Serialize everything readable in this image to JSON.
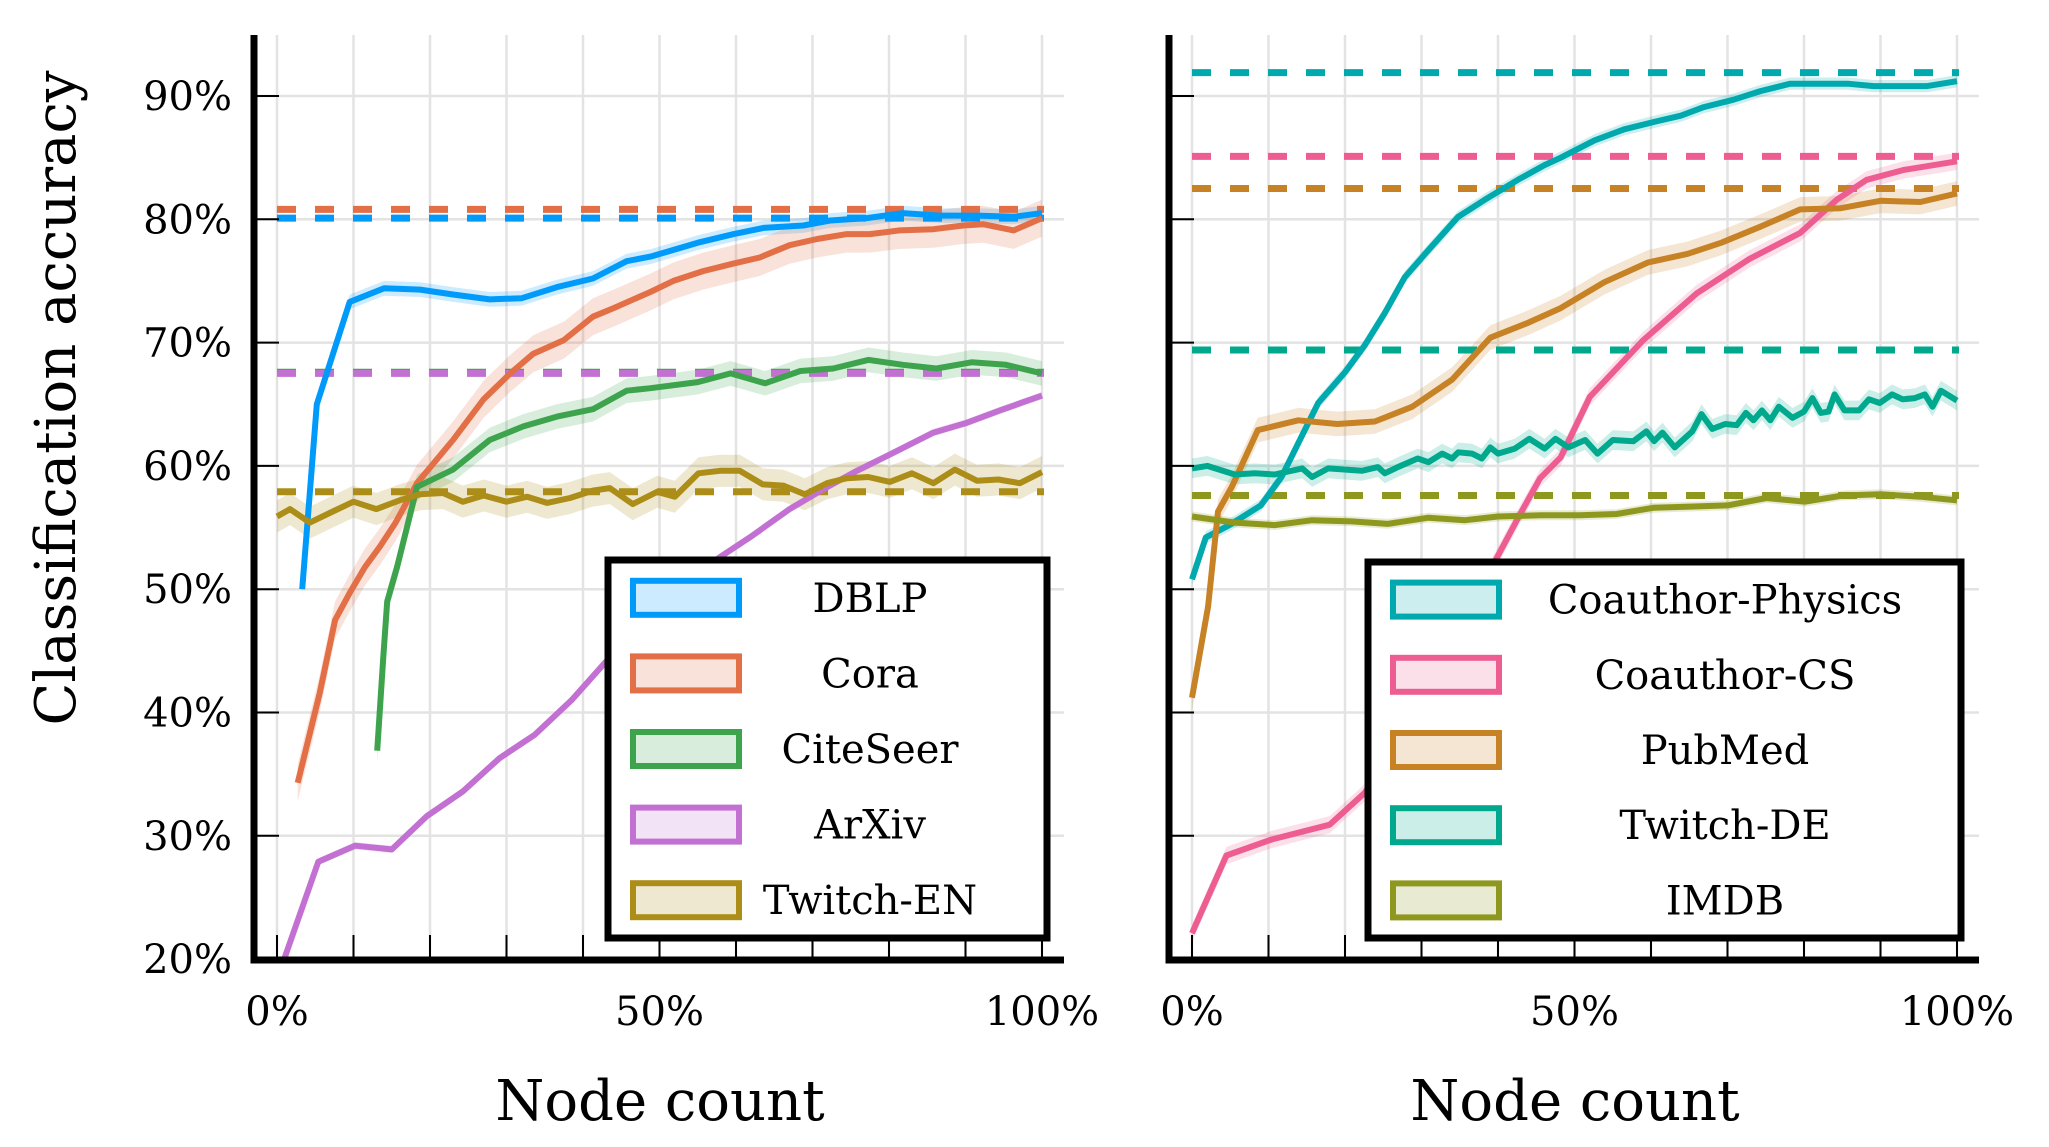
{
  "chart_data": [
    {
      "type": "line",
      "panel": "left",
      "xlabel": "Node count",
      "ylabel": "Classification accuracy",
      "xlim": [
        0,
        100
      ],
      "ylim": [
        20,
        95
      ],
      "xticks": [
        0,
        50,
        100
      ],
      "xtick_labels": [
        "0%",
        "50%",
        "100%"
      ],
      "yticks": [
        20,
        30,
        40,
        50,
        60,
        70,
        80,
        90
      ],
      "ytick_labels": [
        "20%",
        "30%",
        "40%",
        "50%",
        "60%",
        "70%",
        "80%",
        "90%"
      ],
      "grid": true,
      "legend_position": "bottom-right",
      "series": [
        {
          "name": "DBLP",
          "color": "#009AFA",
          "baseline": 80.1,
          "x": [
            3.3,
            5.2,
            9.5,
            14,
            18.7,
            23,
            27.8,
            32,
            36.6,
            41.3,
            45.7,
            49,
            55,
            59.7,
            63.6,
            68.8,
            72.3,
            77.1,
            81.8,
            86.6,
            91.5,
            96.3,
            100
          ],
          "y": [
            50,
            65,
            73.3,
            74.4,
            74.3,
            73.9,
            73.5,
            73.6,
            74.5,
            75.2,
            76.6,
            77.0,
            78.1,
            78.8,
            79.3,
            79.5,
            79.9,
            80.1,
            80.5,
            80.3,
            80.3,
            80.2,
            80.5
          ],
          "band": 0.6
        },
        {
          "name": "Cora",
          "color": "#E26F46",
          "baseline": 80.8,
          "x": [
            2.7,
            5.6,
            7.6,
            9.5,
            11.5,
            13.5,
            15.5,
            18.3,
            23,
            27,
            30.5,
            33.5,
            37.5,
            41.3,
            44,
            48.8,
            51.8,
            55.7,
            59.6,
            63.1,
            67,
            70.6,
            74.5,
            77.5,
            81.4,
            85.8,
            89.7,
            92.3,
            96.3,
            100
          ],
          "y": [
            34.3,
            41.6,
            47.5,
            49.7,
            51.8,
            53.5,
            55.4,
            58.6,
            62.1,
            65.4,
            67.5,
            69.1,
            70.2,
            72.1,
            72.8,
            74.1,
            75.0,
            75.8,
            76.4,
            76.9,
            77.9,
            78.4,
            78.8,
            78.8,
            79.1,
            79.2,
            79.5,
            79.6,
            79.1,
            80.1
          ],
          "band": 1.5
        },
        {
          "name": "CiteSeer",
          "color": "#3DA44D",
          "baseline": 67.6,
          "x": [
            13.1,
            13.9,
            14.4,
            15.7,
            18.3,
            23,
            27.8,
            32.2,
            36.6,
            41.3,
            45.7,
            48.8,
            55,
            59.3,
            63.8,
            68.4,
            72.7,
            77.3,
            81.8,
            86.2,
            90.8,
            95.3,
            100
          ],
          "y": [
            36.9,
            44.5,
            49.0,
            51.8,
            58.3,
            59.7,
            62.1,
            63.2,
            64.0,
            64.6,
            66.1,
            66.3,
            66.8,
            67.5,
            66.7,
            67.7,
            67.9,
            68.6,
            68.2,
            67.9,
            68.4,
            68.2,
            67.5
          ],
          "band": 1.0
        },
        {
          "name": "ArXiv",
          "color": "#C271D2",
          "baseline": 67.5,
          "x": [
            1,
            5.4,
            10.2,
            15,
            19.6,
            24.3,
            29.1,
            33.7,
            38.5,
            43.1,
            48,
            52.5,
            57.9,
            61.8,
            67,
            71.4,
            75.8,
            81,
            85.8,
            90.2,
            94.5,
            100
          ],
          "y": [
            20.1,
            27.9,
            29.2,
            28.9,
            31.6,
            33.6,
            36.3,
            38.2,
            41.0,
            44.2,
            47.3,
            50.0,
            52.6,
            54.2,
            56.5,
            58.1,
            59.6,
            61.2,
            62.7,
            63.5,
            64.5,
            65.7
          ],
          "band": 0.3
        },
        {
          "name": "Twitch-EN",
          "color": "#AC8D18",
          "baseline": 57.9,
          "x": [
            0,
            1.7,
            4.3,
            7.3,
            10,
            13,
            16,
            18.7,
            21.7,
            24.3,
            27,
            30,
            32.7,
            35.3,
            38.3,
            41.3,
            43.5,
            46.5,
            49.7,
            52,
            55.1,
            57.9,
            60.5,
            63.5,
            66.2,
            69,
            71.9,
            74.5,
            77.3,
            80.1,
            83,
            85.8,
            88.6,
            91.5,
            94.3,
            97.1,
            100
          ],
          "y": [
            55.9,
            56.5,
            55.4,
            56.3,
            57.1,
            56.5,
            57.2,
            57.7,
            57.8,
            57.1,
            57.6,
            57.1,
            57.5,
            57.0,
            57.4,
            58.0,
            58.2,
            56.9,
            57.9,
            57.5,
            59.4,
            59.6,
            59.6,
            58.5,
            58.4,
            57.7,
            58.6,
            59.0,
            59.1,
            58.7,
            59.4,
            58.6,
            59.7,
            58.8,
            58.9,
            58.6,
            59.5
          ],
          "band": 1.3
        }
      ]
    },
    {
      "type": "line",
      "panel": "right",
      "xlabel": "Node count",
      "ylabel": "",
      "xlim": [
        0,
        100
      ],
      "ylim": [
        20,
        95
      ],
      "xticks": [
        0,
        50,
        100
      ],
      "xtick_labels": [
        "0%",
        "50%",
        "100%"
      ],
      "yticks": [
        20,
        30,
        40,
        50,
        60,
        70,
        80,
        90
      ],
      "ytick_labels": [],
      "grid": true,
      "legend_position": "bottom-right",
      "series": [
        {
          "name": "Coauthor-Physics",
          "color": "#00A9AD",
          "baseline": 91.9,
          "x": [
            0,
            1.8,
            4.9,
            9,
            11.7,
            16.5,
            20,
            22.6,
            25.2,
            27.8,
            30.9,
            34.8,
            38.3,
            42.6,
            46.1,
            48.2,
            52.6,
            56.5,
            60.4,
            63.9,
            66.9,
            70.8,
            74.3,
            78.2,
            82.2,
            85.7,
            89.1,
            92.6,
            96.1,
            100
          ],
          "y": [
            50.8,
            54.2,
            55.2,
            56.8,
            59.1,
            65.1,
            67.6,
            69.8,
            72.4,
            75.3,
            77.5,
            80.2,
            81.6,
            83.2,
            84.4,
            85.0,
            86.4,
            87.3,
            87.9,
            88.4,
            89.1,
            89.7,
            90.4,
            91.0,
            91.0,
            91.0,
            90.8,
            90.8,
            90.8,
            91.2
          ],
          "band": 0.5
        },
        {
          "name": "Coauthor-CS",
          "color": "#ED5D92",
          "baseline": 85.1,
          "x": [
            0,
            4.5,
            10.4,
            18,
            22.6,
            27,
            31,
            35.5,
            39.8,
            42.9,
            45.5,
            48.2,
            52,
            59,
            66,
            72.9,
            79.5,
            84.3,
            88.2,
            93,
            100
          ],
          "y": [
            22.1,
            28.4,
            29.7,
            30.9,
            33.5,
            37.5,
            42,
            47.5,
            52.5,
            56.1,
            59.0,
            60.7,
            65.6,
            70.2,
            74.0,
            76.8,
            78.9,
            81.6,
            83.2,
            84.0,
            84.7
          ],
          "band": 0.7
        },
        {
          "name": "PubMed",
          "color": "#C68225",
          "baseline": 82.5,
          "x": [
            0,
            2.1,
            3.4,
            5.2,
            8.6,
            13.9,
            19,
            23.9,
            28.8,
            34,
            39,
            43.9,
            48.2,
            53.9,
            59.6,
            64.8,
            69.2,
            74.3,
            79.5,
            84.8,
            90,
            95.2,
            100
          ],
          "y": [
            41.2,
            48.6,
            56.3,
            58.3,
            62.9,
            63.7,
            63.4,
            63.6,
            64.8,
            67.0,
            70.4,
            71.6,
            72.8,
            74.9,
            76.5,
            77.2,
            78.1,
            79.4,
            80.8,
            80.9,
            81.5,
            81.4,
            82.1
          ],
          "band": 1.0
        },
        {
          "name": "Twitch-DE",
          "color": "#00A98D",
          "baseline": 69.4,
          "x": [
            0,
            2,
            5.6,
            8.2,
            10.8,
            14.4,
            15.7,
            17.8,
            22.2,
            24.3,
            25.2,
            26.9,
            29.5,
            30.9,
            32.7,
            34,
            34.8,
            36.6,
            37.9,
            39,
            40,
            42.2,
            44.1,
            46.1,
            47.5,
            49.2,
            51.4,
            53,
            55,
            57.7,
            59.4,
            60.4,
            61.5,
            63.1,
            65.4,
            66.6,
            68,
            69.7,
            71.2,
            72.4,
            73.4,
            74.5,
            75.6,
            76.7,
            78.5,
            80.0,
            81.1,
            82.2,
            83.2,
            84.0,
            85.3,
            87.2,
            88.5,
            89.9,
            91.5,
            92.9,
            94.5,
            95.8,
            96.8,
            97.9,
            100
          ],
          "y": [
            59.8,
            60.0,
            59.3,
            59.4,
            59.3,
            59.8,
            59.1,
            59.8,
            59.6,
            59.9,
            59.4,
            59.9,
            60.6,
            60.3,
            61.0,
            60.6,
            61.1,
            61.0,
            60.6,
            61.5,
            61.0,
            61.4,
            62.2,
            61.4,
            62.2,
            61.5,
            62.1,
            61.0,
            62.1,
            62.0,
            62.8,
            62.0,
            62.7,
            61.5,
            62.8,
            64.2,
            63.0,
            63.4,
            63.3,
            64.3,
            63.7,
            64.5,
            63.7,
            64.8,
            63.9,
            64.4,
            65.5,
            64.3,
            64.4,
            65.8,
            64.5,
            64.5,
            65.4,
            65.1,
            65.8,
            65.4,
            65.5,
            65.8,
            64.8,
            66.1,
            65.3
          ],
          "band": 0.8
        },
        {
          "name": "IMDB",
          "color": "#8E971E",
          "baseline": 57.6,
          "x": [
            0,
            5.6,
            10.8,
            15.7,
            20.9,
            25.6,
            30.9,
            35.7,
            40,
            45.7,
            50.7,
            55.5,
            60.3,
            65.1,
            70,
            75.1,
            80.1,
            85.1,
            90,
            95.2,
            100
          ],
          "y": [
            55.9,
            55.4,
            55.2,
            55.6,
            55.5,
            55.3,
            55.8,
            55.6,
            55.9,
            56.0,
            56.0,
            56.1,
            56.6,
            56.7,
            56.8,
            57.4,
            57.1,
            57.6,
            57.7,
            57.5,
            57.2
          ],
          "band": 0.4
        }
      ]
    }
  ]
}
